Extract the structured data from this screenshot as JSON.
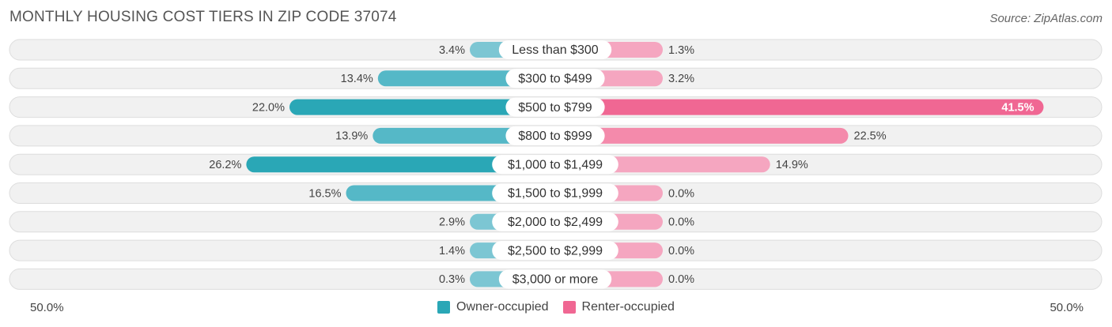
{
  "title": "MONTHLY HOUSING COST TIERS IN ZIP CODE 37074",
  "source": "Source: ZipAtlas.com",
  "colors": {
    "owner_light": "#7cc6d3",
    "owner_dark": "#2aa7b6",
    "renter_light": "#f5a6c0",
    "renter_dark": "#f06793",
    "row_bg": "#f1f1f1",
    "row_border": "#dddddd"
  },
  "legend": {
    "owner": "Owner-occupied",
    "renter": "Renter-occupied"
  },
  "axis": {
    "left_label": "50.0%",
    "right_label": "50.0%"
  },
  "chart_data": {
    "type": "bar",
    "orientation": "diverging-horizontal",
    "categories": [
      "Less than $300",
      "$300 to $499",
      "$500 to $799",
      "$800 to $999",
      "$1,000 to $1,499",
      "$1,500 to $1,999",
      "$2,000 to $2,499",
      "$2,500 to $2,999",
      "$3,000 or more"
    ],
    "series": [
      {
        "name": "Owner-occupied",
        "values": [
          3.4,
          13.4,
          22.0,
          13.9,
          26.2,
          16.5,
          2.9,
          1.4,
          0.3
        ],
        "labels": [
          "3.4%",
          "13.4%",
          "22.0%",
          "13.9%",
          "26.2%",
          "16.5%",
          "2.9%",
          "1.4%",
          "0.3%"
        ]
      },
      {
        "name": "Renter-occupied",
        "values": [
          1.3,
          3.2,
          41.5,
          22.5,
          14.9,
          0.0,
          0.0,
          0.0,
          0.0
        ],
        "labels": [
          "1.3%",
          "3.2%",
          "41.5%",
          "22.5%",
          "14.9%",
          "0.0%",
          "0.0%",
          "0.0%",
          "0.0%"
        ]
      }
    ],
    "xlim": [
      -50,
      50
    ],
    "legend_position": "bottom-center"
  }
}
